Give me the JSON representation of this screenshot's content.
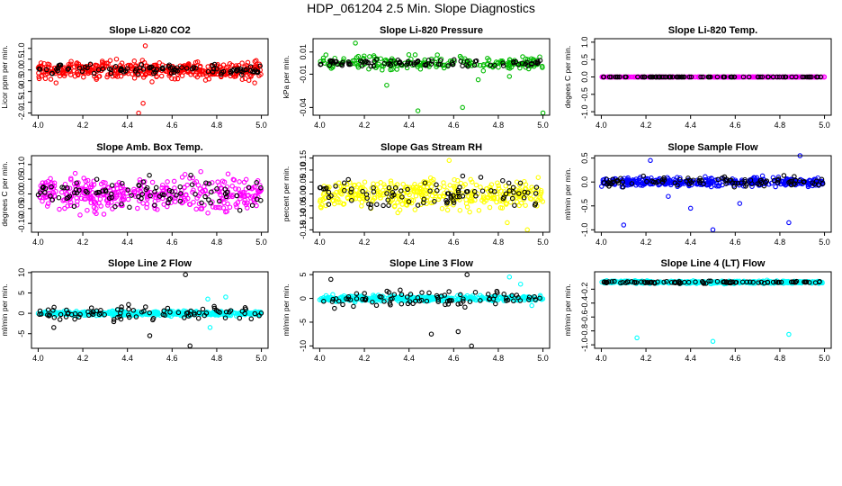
{
  "figure_title": "HDP_061204  2.5 Min. Slope Diagnostics",
  "chart_data": [
    {
      "type": "scatter",
      "title": "Slope Li-820 CO2",
      "ylabel": "Licor ppm per min.",
      "xlabel": "",
      "xlim": [
        3.97,
        5.03
      ],
      "ylim": [
        -2.1,
        1.45
      ],
      "x_ticks": [
        "4.0",
        "4.2",
        "4.4",
        "4.6",
        "4.8",
        "5.0"
      ],
      "y_ticks": [
        {
          "value": 1.0,
          "label": "1.0"
        },
        {
          "value": 0.5,
          "label": "0.5"
        },
        {
          "value": 0.0,
          "label": "0.0"
        },
        {
          "value": -0.5,
          "label": "-0.5"
        },
        {
          "value": -1.0,
          "label": "-1.0"
        },
        {
          "value": -1.5,
          "label": "-1.5"
        },
        {
          "value": -2.0,
          "label": "-2.0"
        }
      ],
      "series": [
        {
          "name": "all",
          "color": "#ff0000",
          "count": 420,
          "center": 0.0,
          "spread": 0.38,
          "extra": [
            [
              4.48,
              1.12
            ],
            [
              4.51,
              -0.55
            ],
            [
              4.47,
              -1.55
            ],
            [
              4.45,
              -2.0
            ],
            [
              4.08,
              -0.6
            ],
            [
              4.97,
              -0.6
            ]
          ]
        },
        {
          "name": "selected",
          "color": "#000000",
          "count": 95,
          "center": 0.0,
          "spread": 0.22,
          "extra": []
        }
      ]
    },
    {
      "type": "scatter",
      "title": "Slope Li-820 Pressure",
      "ylabel": "kPa per min.",
      "xlabel": "",
      "xlim": [
        3.97,
        5.03
      ],
      "ylim": [
        -0.047,
        0.022
      ],
      "x_ticks": [
        "4.0",
        "4.2",
        "4.4",
        "4.6",
        "4.8",
        "5.0"
      ],
      "y_ticks": [
        {
          "value": 0.01,
          "label": "0.01"
        },
        {
          "value": -0.01,
          "label": "-0.01"
        },
        {
          "value": -0.04,
          "label": "-0.04"
        }
      ],
      "series": [
        {
          "name": "all",
          "color": "#00bb00",
          "count": 200,
          "center": 0.0,
          "spread": 0.006,
          "extra": [
            [
              4.16,
              0.018
            ],
            [
              4.44,
              -0.043
            ],
            [
              4.64,
              -0.04
            ],
            [
              5.0,
              -0.045
            ],
            [
              4.3,
              -0.02
            ],
            [
              4.71,
              -0.015
            ],
            [
              4.85,
              -0.012
            ]
          ]
        },
        {
          "name": "selected",
          "color": "#000000",
          "count": 90,
          "center": 0.0,
          "spread": 0.003,
          "extra": []
        }
      ]
    },
    {
      "type": "scatter",
      "title": "Slope Li-820 Temp.",
      "ylabel": "degees C per min.",
      "xlabel": "",
      "xlim": [
        3.97,
        5.03
      ],
      "ylim": [
        -1.1,
        1.1
      ],
      "x_ticks": [
        "4.0",
        "4.2",
        "4.4",
        "4.6",
        "4.8",
        "5.0"
      ],
      "y_ticks": [
        {
          "value": 1.0,
          "label": "1.0"
        },
        {
          "value": 0.5,
          "label": "0.5"
        },
        {
          "value": 0.0,
          "label": "0.0"
        },
        {
          "value": -0.5,
          "label": "-0.5"
        },
        {
          "value": -1.0,
          "label": "-1.0"
        }
      ],
      "series": [
        {
          "name": "all",
          "color": "#ff00ff",
          "count": 300,
          "center": 0.0,
          "spread": 0.0,
          "extra": []
        },
        {
          "name": "selected",
          "color": "#000000",
          "count": 90,
          "center": 0.0,
          "spread": 0.0,
          "extra": []
        }
      ]
    },
    {
      "type": "scatter",
      "title": "Slope Amb. Box Temp.",
      "ylabel": "degrees C per min.",
      "xlabel": "",
      "xlim": [
        3.97,
        5.03
      ],
      "ylim": [
        -0.13,
        0.13
      ],
      "x_ticks": [
        "4.0",
        "4.2",
        "4.4",
        "4.6",
        "4.8",
        "5.0"
      ],
      "y_ticks": [
        {
          "value": 0.1,
          "label": "0.10"
        },
        {
          "value": 0.05,
          "label": "0.05"
        },
        {
          "value": 0.0,
          "label": "0.00"
        },
        {
          "value": -0.05,
          "label": "-0.05"
        },
        {
          "value": -0.1,
          "label": "-0.10"
        }
      ],
      "series": [
        {
          "name": "all",
          "color": "#ff00ff",
          "count": 380,
          "center": 0.0,
          "spread": 0.055,
          "extra": []
        },
        {
          "name": "selected",
          "color": "#000000",
          "count": 90,
          "center": 0.0,
          "spread": 0.045,
          "extra": []
        }
      ]
    },
    {
      "type": "scatter",
      "title": "Slope Gas Stream RH",
      "ylabel": "percent per min.",
      "xlabel": "",
      "xlim": [
        3.97,
        5.03
      ],
      "ylim": [
        -0.16,
        0.16
      ],
      "x_ticks": [
        "4.0",
        "4.2",
        "4.4",
        "4.6",
        "4.8",
        "5.0"
      ],
      "y_ticks": [
        {
          "value": 0.15,
          "label": "0.15"
        },
        {
          "value": 0.1,
          "label": "0.10"
        },
        {
          "value": 0.05,
          "label": "0.05"
        },
        {
          "value": 0.0,
          "label": "0.00"
        },
        {
          "value": -0.05,
          "label": "-0.05"
        },
        {
          "value": -0.1,
          "label": "-0.10"
        },
        {
          "value": -0.15,
          "label": "-0.15"
        }
      ],
      "series": [
        {
          "name": "all",
          "color": "#ffff00",
          "count": 380,
          "center": 0.0,
          "spread": 0.06,
          "extra": [
            [
              4.93,
              -0.15
            ],
            [
              4.84,
              -0.12
            ],
            [
              4.58,
              0.14
            ]
          ]
        },
        {
          "name": "selected",
          "color": "#000000",
          "count": 90,
          "center": 0.0,
          "spread": 0.055,
          "extra": []
        }
      ]
    },
    {
      "type": "scatter",
      "title": "Slope Sample Flow",
      "ylabel": "ml/min per min.",
      "xlabel": "",
      "xlim": [
        3.97,
        5.03
      ],
      "ylim": [
        -1.05,
        0.55
      ],
      "x_ticks": [
        "4.0",
        "4.2",
        "4.4",
        "4.6",
        "4.8",
        "5.0"
      ],
      "y_ticks": [
        {
          "value": 0.5,
          "label": "0.5"
        },
        {
          "value": 0.0,
          "label": "0.0"
        },
        {
          "value": -0.5,
          "label": "-0.5"
        },
        {
          "value": -1.0,
          "label": "-1.0"
        }
      ],
      "series": [
        {
          "name": "all",
          "color": "#0000ff",
          "count": 380,
          "center": 0.0,
          "spread": 0.09,
          "extra": [
            [
              4.1,
              -0.9
            ],
            [
              4.22,
              0.45
            ],
            [
              4.4,
              -0.55
            ],
            [
              4.5,
              -1.0
            ],
            [
              4.62,
              -0.45
            ],
            [
              4.84,
              -0.85
            ],
            [
              4.89,
              0.55
            ],
            [
              4.3,
              -0.3
            ]
          ]
        },
        {
          "name": "selected",
          "color": "#000000",
          "count": 90,
          "center": 0.0,
          "spread": 0.1,
          "extra": []
        }
      ]
    },
    {
      "type": "scatter",
      "title": "Slope Line 2 Flow",
      "ylabel": "ml/min per min.",
      "xlabel": "",
      "xlim": [
        3.97,
        5.03
      ],
      "ylim": [
        -8.6,
        10.2
      ],
      "x_ticks": [
        "4.0",
        "4.2",
        "4.4",
        "4.6",
        "4.8",
        "5.0"
      ],
      "y_ticks": [
        {
          "value": 10,
          "label": "10"
        },
        {
          "value": 5,
          "label": "5"
        },
        {
          "value": 0,
          "label": "0"
        },
        {
          "value": -5,
          "label": "-5"
        }
      ],
      "series": [
        {
          "name": "all",
          "color": "#00ffff",
          "count": 380,
          "center": 0.0,
          "spread": 0.55,
          "extra": [
            [
              4.76,
              3.5
            ],
            [
              4.84,
              4.0
            ],
            [
              4.77,
              -3.5
            ]
          ]
        },
        {
          "name": "selected",
          "color": "#000000",
          "count": 90,
          "center": 0.0,
          "spread": 1.8,
          "extra": [
            [
              4.66,
              9.5
            ],
            [
              4.68,
              -8.0
            ],
            [
              4.5,
              -5.5
            ],
            [
              4.07,
              -3.5
            ]
          ]
        }
      ]
    },
    {
      "type": "scatter",
      "title": "Slope Line 3 Flow",
      "ylabel": "ml/min per min.",
      "xlabel": "",
      "xlim": [
        3.97,
        5.03
      ],
      "ylim": [
        -10.5,
        5.6
      ],
      "x_ticks": [
        "4.0",
        "4.2",
        "4.4",
        "4.6",
        "4.8",
        "5.0"
      ],
      "y_ticks": [
        {
          "value": 5,
          "label": "5"
        },
        {
          "value": 0,
          "label": "0"
        },
        {
          "value": -5,
          "label": "-5"
        },
        {
          "value": -10,
          "label": "-10"
        }
      ],
      "series": [
        {
          "name": "all",
          "color": "#00ffff",
          "count": 380,
          "center": 0.0,
          "spread": 0.55,
          "extra": [
            [
              4.85,
              4.5
            ],
            [
              4.95,
              -1.5
            ],
            [
              4.9,
              3.0
            ]
          ]
        },
        {
          "name": "selected",
          "color": "#000000",
          "count": 90,
          "center": 0.0,
          "spread": 1.7,
          "extra": [
            [
              4.05,
              4.0
            ],
            [
              4.66,
              5.0
            ],
            [
              4.68,
              -10.0
            ],
            [
              4.5,
              -7.5
            ],
            [
              4.62,
              -7.0
            ]
          ]
        }
      ]
    },
    {
      "type": "scatter",
      "title": "Slope Line 4 (LT) Flow",
      "ylabel": "ml/min per min.",
      "xlabel": "",
      "xlim": [
        3.97,
        5.03
      ],
      "ylim": [
        -1.05,
        0.05
      ],
      "x_ticks": [
        "4.0",
        "4.2",
        "4.4",
        "4.6",
        "4.8",
        "5.0"
      ],
      "y_ticks": [
        {
          "value": -0.2,
          "label": "-0.2"
        },
        {
          "value": -0.4,
          "label": "-0.4"
        },
        {
          "value": -0.6,
          "label": "-0.6"
        },
        {
          "value": -0.8,
          "label": "-0.8"
        },
        {
          "value": -1.0,
          "label": "-1.0"
        }
      ],
      "series": [
        {
          "name": "all",
          "color": "#00ffff",
          "count": 380,
          "center": -0.1,
          "spread": 0.02,
          "extra": [
            [
              4.16,
              -0.9
            ],
            [
              4.5,
              -0.95
            ],
            [
              4.84,
              -0.85
            ]
          ]
        },
        {
          "name": "selected",
          "color": "#000000",
          "count": 90,
          "center": -0.1,
          "spread": 0.015,
          "extra": []
        }
      ]
    }
  ]
}
